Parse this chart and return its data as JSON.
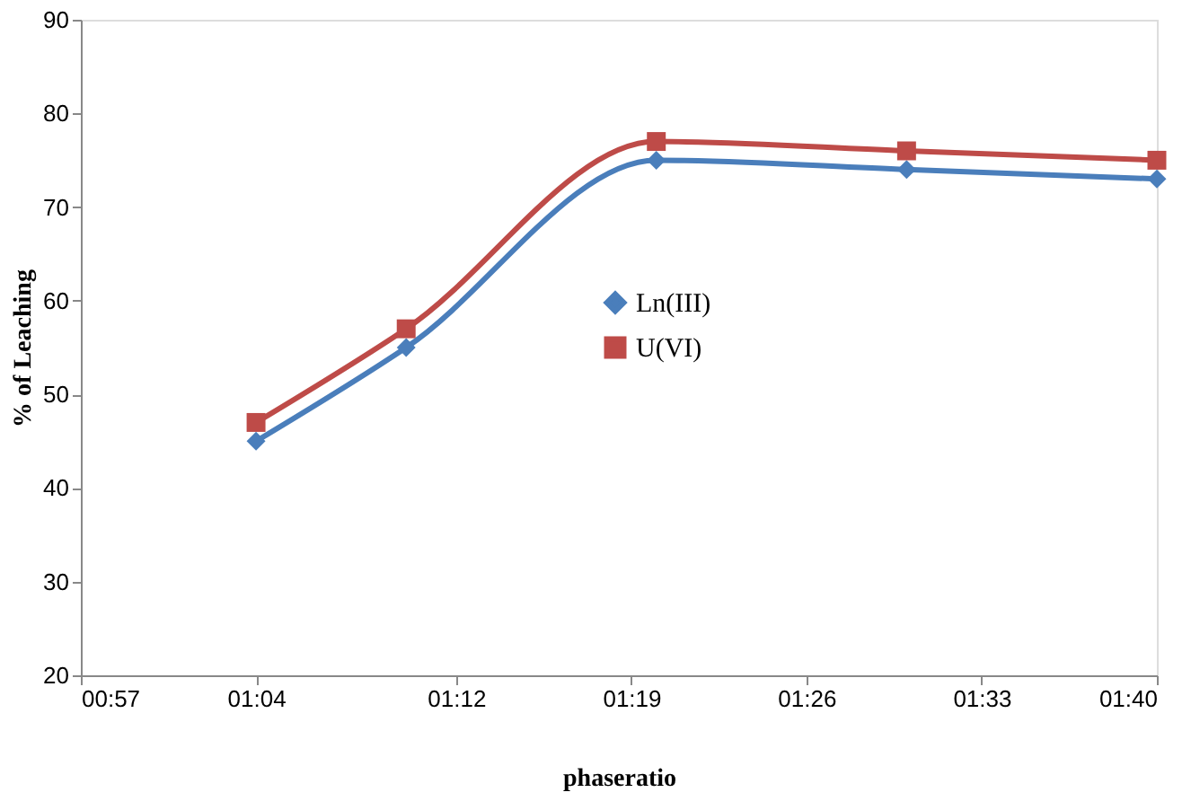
{
  "chart_data": {
    "type": "line",
    "xlabel": "phaseratio",
    "ylabel": "% of Leaching",
    "x": [
      1.0667,
      1.1667,
      1.3333,
      1.5,
      1.6667
    ],
    "series": [
      {
        "name": "Ln(III)",
        "color": "#4a7ebb",
        "marker": "diamond",
        "values": [
          45,
          55,
          75,
          74,
          73
        ]
      },
      {
        "name": "U(VI)",
        "color": "#be4b48",
        "marker": "square",
        "values": [
          47,
          57,
          77,
          76,
          75
        ]
      }
    ],
    "xlim": [
      0.95,
      1.6667
    ],
    "xticks": [
      {
        "value": 0.95,
        "label": "00:57"
      },
      {
        "value": 1.0667,
        "label": "01:04"
      },
      {
        "value": 1.2,
        "label": "01:12"
      },
      {
        "value": 1.3167,
        "label": "01:19"
      },
      {
        "value": 1.4333,
        "label": "01:26"
      },
      {
        "value": 1.55,
        "label": "01:33"
      },
      {
        "value": 1.6667,
        "label": "01:40"
      }
    ],
    "ylim": [
      20,
      90
    ],
    "yticks": [
      20,
      30,
      40,
      50,
      60,
      70,
      80,
      90
    ],
    "grid": false,
    "legend": "center",
    "line_style": "solid"
  }
}
